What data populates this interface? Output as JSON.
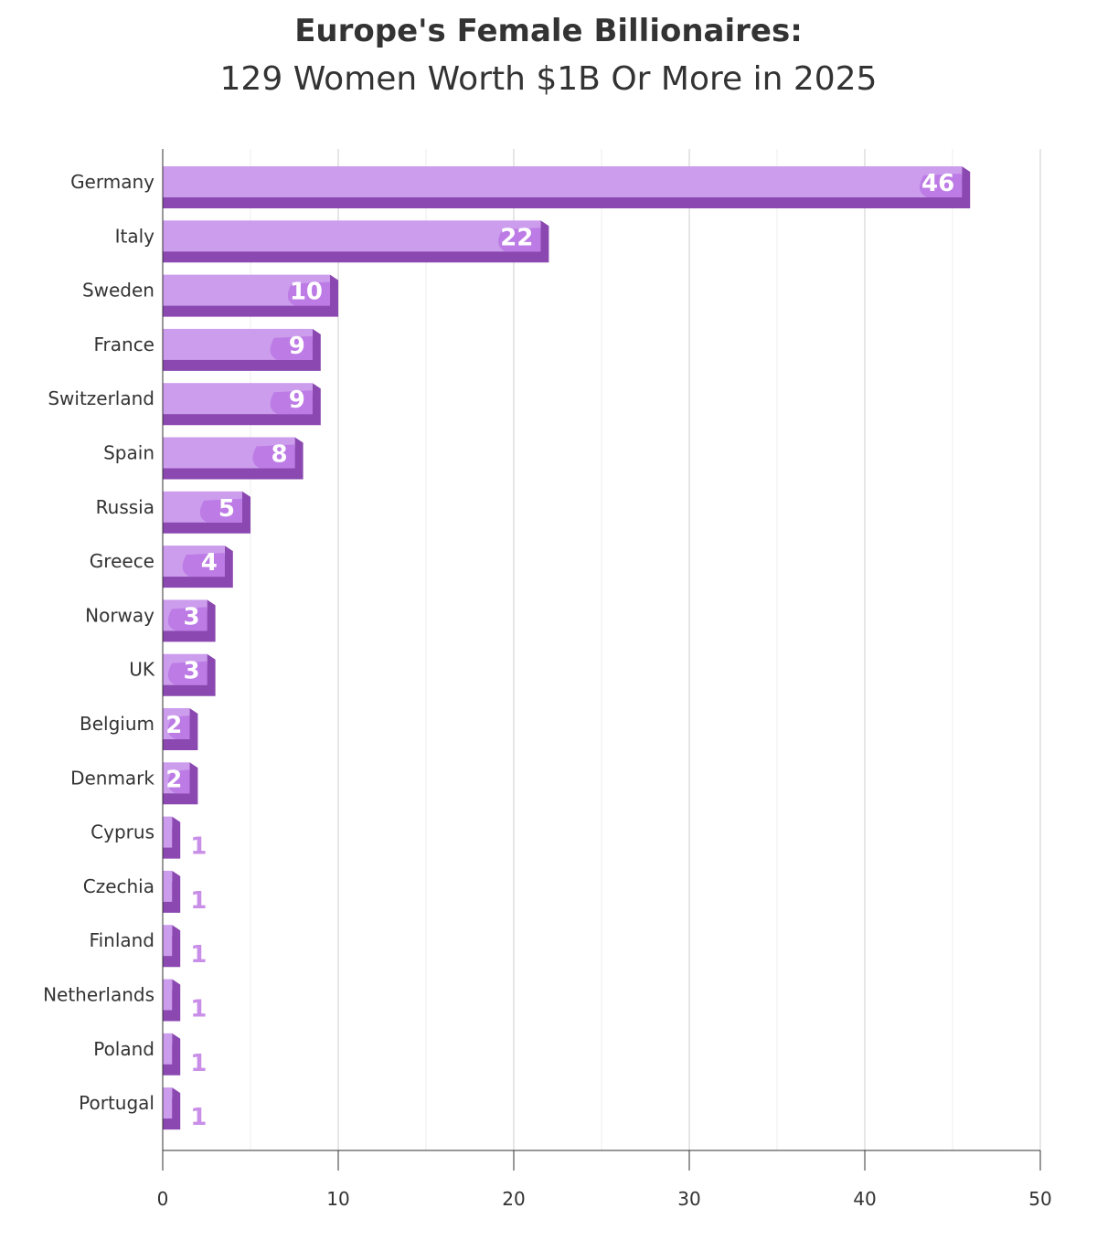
{
  "chart_data": {
    "type": "bar",
    "orientation": "horizontal",
    "title": "Europe's Female Billionaires:",
    "subtitle": "129 Women Worth $1B Or More in 2025",
    "categories": [
      "Germany",
      "Italy",
      "Sweden",
      "France",
      "Switzerland",
      "Spain",
      "Russia",
      "Greece",
      "Norway",
      "UK",
      "Belgium",
      "Denmark",
      "Cyprus",
      "Czechia",
      "Finland",
      "Netherlands",
      "Poland",
      "Portugal"
    ],
    "values": [
      46,
      22,
      10,
      9,
      9,
      8,
      5,
      4,
      3,
      3,
      2,
      2,
      1,
      1,
      1,
      1,
      1,
      1
    ],
    "xlim": [
      0,
      50
    ],
    "xticks": [
      0,
      10,
      20,
      30,
      40,
      50
    ],
    "grid": true,
    "colors": {
      "bar_face": "#cc9ced",
      "bar_shadow": "#8a48b0",
      "bar_accent": "#b875e3",
      "label_outside": "#c98fe8",
      "gridline": "#cccccc",
      "axis": "#333333"
    }
  }
}
